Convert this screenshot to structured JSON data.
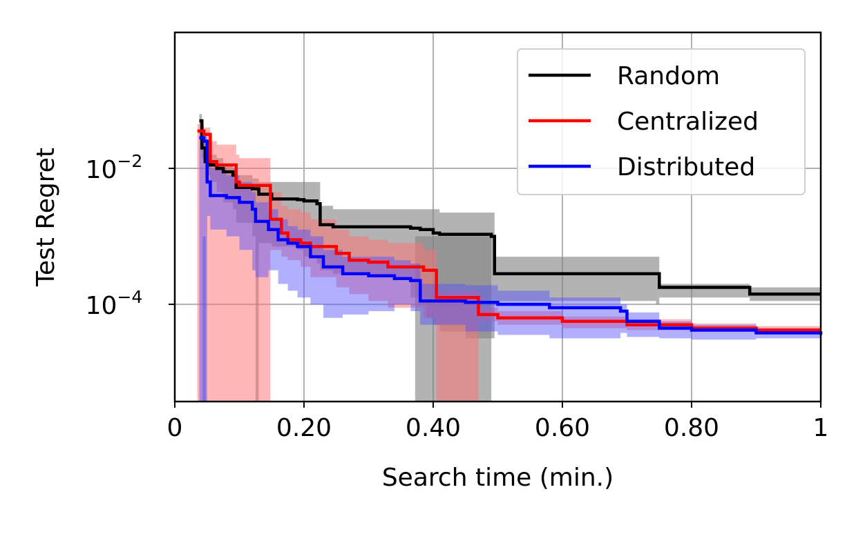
{
  "chart_data": {
    "type": "line",
    "xlabel": "Search time (min.)",
    "ylabel": "Test Regret",
    "xlim": [
      0,
      1
    ],
    "ylim_log10": [
      -5.43,
      0.0
    ],
    "y_scale": "log",
    "grid": true,
    "legend_position": "top-right",
    "x_ticks": [
      {
        "value": 0,
        "label": "0"
      },
      {
        "value": 0.2,
        "label": "0.20"
      },
      {
        "value": 0.4,
        "label": "0.40"
      },
      {
        "value": 0.6,
        "label": "0.60"
      },
      {
        "value": 0.8,
        "label": "0.80"
      },
      {
        "value": 1,
        "label": "1"
      }
    ],
    "y_ticks": [
      {
        "exp": -2,
        "base": "10",
        "sup": "−2"
      },
      {
        "exp": -4,
        "base": "10",
        "sup": "−4"
      }
    ],
    "series": [
      {
        "name": "Random",
        "color": "#000000",
        "band_color": "#808080",
        "band_opacity": 0.6,
        "x": [
          0.038,
          0.042,
          0.047,
          0.055,
          0.065,
          0.075,
          0.09,
          0.095,
          0.12,
          0.13,
          0.15,
          0.19,
          0.2,
          0.22,
          0.225,
          0.245,
          0.3,
          0.365,
          0.38,
          0.39,
          0.4,
          0.41,
          0.45,
          0.49,
          0.495,
          0.745,
          0.75,
          0.88,
          0.89,
          1.0
        ],
        "median_log10": [
          -1.3,
          -1.7,
          -1.9,
          -1.95,
          -2.0,
          -2.05,
          -2.1,
          -2.28,
          -2.3,
          -2.38,
          -2.45,
          -2.46,
          -2.48,
          -2.52,
          -2.83,
          -2.86,
          -2.86,
          -2.88,
          -2.9,
          -2.9,
          -2.95,
          -2.97,
          -2.97,
          -3.0,
          -3.55,
          -3.55,
          -3.75,
          -3.75,
          -3.85,
          -3.85
        ],
        "low_log10": [
          -1.5,
          -1.85,
          -2.1,
          -2.2,
          -2.35,
          -2.5,
          -2.6,
          -2.8,
          -3.0,
          -3.1,
          -3.15,
          -3.2,
          -3.3,
          -3.4,
          -3.5,
          -3.55,
          -3.6,
          -3.9,
          -4.0,
          -4.2,
          -4.3,
          -4.4,
          -4.5,
          -4.5,
          -3.95,
          -4.0,
          -3.9,
          -3.9,
          -3.95,
          -3.95
        ],
        "high_log10": [
          -1.2,
          -1.55,
          -1.75,
          -1.8,
          -1.85,
          -1.95,
          -2.0,
          -2.1,
          -2.15,
          -2.2,
          -2.2,
          -2.2,
          -2.2,
          -2.2,
          -2.55,
          -2.6,
          -2.6,
          -2.6,
          -2.6,
          -2.6,
          -2.6,
          -2.65,
          -2.65,
          -2.65,
          -3.3,
          -3.3,
          -3.7,
          -3.7,
          -3.75,
          -3.75
        ],
        "band_drops": [
          {
            "x0": 0.125,
            "x1": 0.13
          },
          {
            "x0": 0.372,
            "x1": 0.49
          }
        ]
      },
      {
        "name": "Centralized",
        "color": "#ff0000",
        "band_color": "#ff7070",
        "band_opacity": 0.5,
        "x": [
          0.035,
          0.045,
          0.055,
          0.065,
          0.095,
          0.1,
          0.14,
          0.148,
          0.165,
          0.175,
          0.195,
          0.21,
          0.25,
          0.27,
          0.3,
          0.33,
          0.385,
          0.405,
          0.47,
          0.5,
          0.6,
          0.7,
          0.8,
          0.9,
          1.0
        ],
        "median_log10": [
          -1.45,
          -1.5,
          -1.9,
          -1.95,
          -2.2,
          -2.25,
          -2.25,
          -2.75,
          -2.95,
          -3.05,
          -3.1,
          -3.15,
          -3.25,
          -3.35,
          -3.38,
          -3.45,
          -3.5,
          -3.9,
          -4.15,
          -4.2,
          -4.25,
          -4.3,
          -4.35,
          -4.38,
          -4.38
        ],
        "low_log10": [
          -5.43,
          -5.43,
          -5.43,
          -5.43,
          -5.43,
          -5.43,
          -5.43,
          -3.2,
          -3.3,
          -3.35,
          -3.45,
          -3.6,
          -3.75,
          -3.85,
          -3.95,
          -4.05,
          -4.2,
          -5.43,
          -4.25,
          -4.3,
          -4.35,
          -4.38,
          -4.4,
          -4.42,
          -4.42
        ],
        "high_log10": [
          -1.35,
          -1.4,
          -1.6,
          -1.65,
          -1.8,
          -1.85,
          -1.85,
          -2.35,
          -2.55,
          -2.6,
          -2.65,
          -2.75,
          -2.9,
          -3.0,
          -3.05,
          -3.1,
          -3.2,
          -3.8,
          -4.05,
          -4.1,
          -4.18,
          -4.22,
          -4.28,
          -4.32,
          -4.32
        ],
        "band_drops": []
      },
      {
        "name": "Distributed",
        "color": "#0000ff",
        "band_color": "#5050ff",
        "band_opacity": 0.45,
        "x": [
          0.038,
          0.045,
          0.05,
          0.055,
          0.08,
          0.1,
          0.12,
          0.125,
          0.145,
          0.16,
          0.175,
          0.19,
          0.21,
          0.23,
          0.26,
          0.3,
          0.34,
          0.365,
          0.38,
          0.45,
          0.5,
          0.58,
          0.69,
          0.7,
          0.75,
          0.8,
          0.9,
          1.0
        ],
        "median_log10": [
          -1.55,
          -1.6,
          -2.2,
          -2.4,
          -2.43,
          -2.5,
          -2.6,
          -2.78,
          -2.9,
          -3.05,
          -3.1,
          -3.15,
          -3.3,
          -3.45,
          -3.55,
          -3.58,
          -3.62,
          -3.65,
          -3.95,
          -3.97,
          -4.0,
          -4.05,
          -4.1,
          -4.25,
          -4.35,
          -4.38,
          -4.42,
          -4.45
        ],
        "low_log10": [
          -5.43,
          -5.43,
          -2.7,
          -2.9,
          -3.0,
          -3.2,
          -3.5,
          -3.6,
          -3.5,
          -3.7,
          -3.8,
          -3.9,
          -4.0,
          -4.2,
          -4.15,
          -4.1,
          -4.0,
          -4.1,
          -4.3,
          -4.4,
          -4.45,
          -4.5,
          -4.42,
          -4.48,
          -4.5,
          -4.52,
          -4.5,
          -4.5
        ],
        "high_log10": [
          -1.45,
          -1.5,
          -1.8,
          -2.0,
          -2.1,
          -2.2,
          -2.35,
          -2.5,
          -2.6,
          -2.75,
          -2.85,
          -2.9,
          -3.0,
          -3.2,
          -3.3,
          -3.3,
          -3.35,
          -3.4,
          -3.7,
          -3.72,
          -3.8,
          -3.9,
          -4.0,
          -4.12,
          -4.25,
          -4.3,
          -4.35,
          -4.38
        ],
        "band_drops": [
          {
            "x0": 0.043,
            "x1": 0.048
          }
        ]
      }
    ]
  }
}
